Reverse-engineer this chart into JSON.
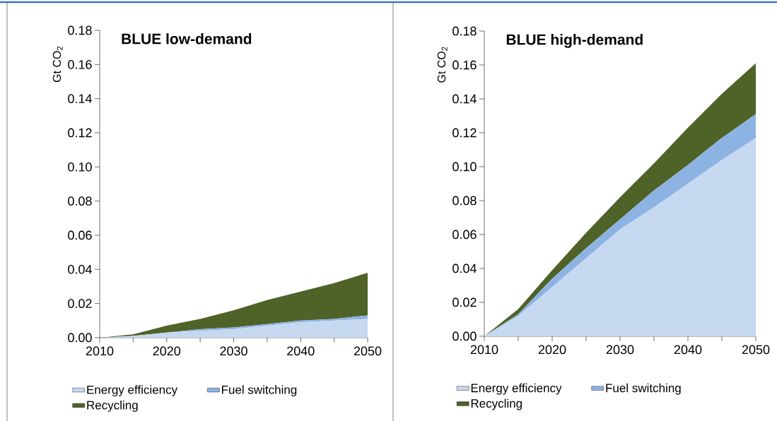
{
  "chart_data": [
    {
      "type": "area",
      "title": "BLUE low-demand",
      "ylabel": "Gt CO$_{2}$",
      "stacked": true,
      "legend": "bottom",
      "x": [
        2010,
        2015,
        2020,
        2025,
        2030,
        2035,
        2040,
        2045,
        2050
      ],
      "xlim": [
        2010,
        2050
      ],
      "ylim": [
        0,
        0.18
      ],
      "xticks": [
        2010,
        {
          "value": 2015,
          "label": null
        },
        2020,
        {
          "value": 2025,
          "label": null
        },
        2030,
        {
          "value": 2035,
          "label": null
        },
        2040,
        {
          "value": 2045,
          "label": null
        },
        2050
      ],
      "yticks": [
        {
          "value": 0,
          "label": "0.00"
        },
        {
          "value": 0.02,
          "label": "0.02"
        },
        {
          "value": 0.04,
          "label": "0.04"
        },
        {
          "value": 0.06,
          "label": "0.06"
        },
        {
          "value": 0.08,
          "label": "0.08"
        },
        {
          "value": 0.1,
          "label": "0.10"
        },
        {
          "value": 0.12,
          "label": "0.12"
        },
        {
          "value": 0.14,
          "label": "0.14"
        },
        {
          "value": 0.16,
          "label": "0.16"
        },
        {
          "value": 0.18,
          "label": "0.18"
        }
      ],
      "series": [
        {
          "name": "Energy efficiency",
          "color": "#c6d9f1",
          "values": [
            0,
            0.001,
            0.003,
            0.004,
            0.005,
            0.007,
            0.009,
            0.01,
            0.011
          ]
        },
        {
          "name": "Fuel switching",
          "color": "#8db3e2",
          "values": [
            0,
            0.0,
            0.0,
            0.001,
            0.001,
            0.001,
            0.001,
            0.001,
            0.002
          ]
        },
        {
          "name": "Recycling",
          "color": "#4f6228",
          "values": [
            0,
            0.001,
            0.004,
            0.006,
            0.01,
            0.014,
            0.017,
            0.021,
            0.025
          ]
        }
      ]
    },
    {
      "type": "area",
      "title": "BLUE high-demand",
      "ylabel": "Gt CO$_{2}$",
      "stacked": true,
      "legend": "bottom",
      "x": [
        2010,
        2015,
        2020,
        2025,
        2030,
        2035,
        2040,
        2045,
        2050
      ],
      "xlim": [
        2010,
        2050
      ],
      "ylim": [
        0,
        0.18
      ],
      "xticks": [
        2010,
        {
          "value": 2015,
          "label": null
        },
        2020,
        {
          "value": 2025,
          "label": null
        },
        2030,
        {
          "value": 2035,
          "label": null
        },
        2040,
        {
          "value": 2045,
          "label": null
        },
        2050
      ],
      "yticks": [
        {
          "value": 0,
          "label": "0.00"
        },
        {
          "value": 0.02,
          "label": "0.02"
        },
        {
          "value": 0.04,
          "label": "0.04"
        },
        {
          "value": 0.06,
          "label": "0.06"
        },
        {
          "value": 0.08,
          "label": "0.08"
        },
        {
          "value": 0.1,
          "label": "0.10"
        },
        {
          "value": 0.12,
          "label": "0.12"
        },
        {
          "value": 0.14,
          "label": "0.14"
        },
        {
          "value": 0.16,
          "label": "0.16"
        },
        {
          "value": 0.18,
          "label": "0.18"
        }
      ],
      "series": [
        {
          "name": "Energy efficiency",
          "color": "#c6d9f1",
          "values": [
            0,
            0.012,
            0.029,
            0.046,
            0.063,
            0.076,
            0.09,
            0.104,
            0.117
          ]
        },
        {
          "name": "Fuel switching",
          "color": "#8db3e2",
          "values": [
            0,
            0.001,
            0.005,
            0.006,
            0.006,
            0.01,
            0.011,
            0.013,
            0.014
          ]
        },
        {
          "name": "Recycling",
          "color": "#4f6228",
          "values": [
            0,
            0.003,
            0.005,
            0.009,
            0.013,
            0.016,
            0.022,
            0.026,
            0.03
          ]
        }
      ]
    }
  ]
}
